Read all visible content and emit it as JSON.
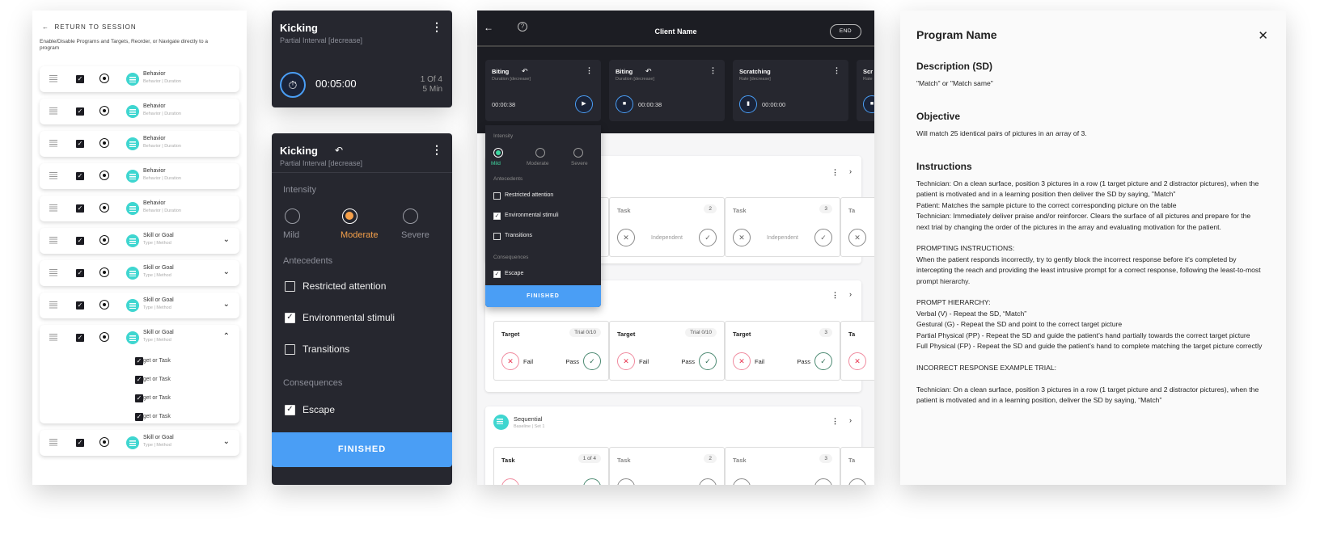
{
  "nav_panel": {
    "return_label": "RETURN TO SESSION",
    "description": "Enable/Disable Programs and Targets, Reorder, or Navigate directly to a program",
    "rows": [
      {
        "title": "Behavior",
        "subtitle": "Behavior | Duration",
        "chevron": ""
      },
      {
        "title": "Behavior",
        "subtitle": "Behavior | Duration",
        "chevron": ""
      },
      {
        "title": "Behavior",
        "subtitle": "Behavior | Duration",
        "chevron": ""
      },
      {
        "title": "Behavior",
        "subtitle": "Behavior | Duration",
        "chevron": ""
      },
      {
        "title": "Behavior",
        "subtitle": "Behavior | Duration",
        "chevron": ""
      },
      {
        "title": "Skill or Goal",
        "subtitle": "Type | Method",
        "chevron": "⌄"
      },
      {
        "title": "Skill or Goal",
        "subtitle": "Type | Method",
        "chevron": "⌄"
      },
      {
        "title": "Skill or Goal",
        "subtitle": "Type | Method",
        "chevron": "⌄"
      },
      {
        "title": "Skill or Goal",
        "subtitle": "Type | Method",
        "chevron": "⌃",
        "targets": [
          "Target or Task",
          "Target or Task",
          "Target or Task",
          "Target or Task"
        ]
      },
      {
        "title": "Skill or Goal",
        "subtitle": "Type | Method",
        "chevron": "⌄"
      }
    ]
  },
  "timer_card": {
    "title": "Kicking",
    "subtitle": "Partial Interval [decrease]",
    "time": "00:05:00",
    "count": "1 Of 4",
    "interval": "5 Min"
  },
  "abc_card": {
    "title": "Kicking",
    "subtitle": "Partial Interval [decrease]",
    "intensity_label": "Intensity",
    "intensity_options": [
      "Mild",
      "Moderate",
      "Severe"
    ],
    "intensity_selected": "Moderate",
    "accent": "#f5a04a",
    "antecedents_label": "Antecedents",
    "antecedents": [
      {
        "label": "Restricted attention",
        "checked": false
      },
      {
        "label": "Environmental stimuli",
        "checked": true
      },
      {
        "label": "Transitions",
        "checked": false
      }
    ],
    "consequences_label": "Consequences",
    "consequences": [
      {
        "label": "Escape",
        "checked": true
      }
    ],
    "finished": "FINISHED"
  },
  "session": {
    "title": "Client Name",
    "end": "END",
    "behaviors": [
      {
        "title": "Biting",
        "subtitle": "Duration [decrease]",
        "time": "00:00:38"
      },
      {
        "title": "Biting",
        "subtitle": "Duration [decrease]",
        "time": "00:00:38"
      },
      {
        "title": "Scratching",
        "subtitle": "Rate [decrease]",
        "time": "00:00:00"
      },
      {
        "title": "Scr",
        "subtitle": "Rate"
      }
    ],
    "popover": {
      "intensity_label": "Intensity",
      "options": [
        "Mild",
        "Moderate",
        "Severe"
      ],
      "selected": "Mild",
      "accent": "#3fd6a0",
      "antecedents_label": "Antecedents",
      "antecedents": [
        {
          "label": "Restricted attention",
          "checked": false
        },
        {
          "label": "Environmental stimuli",
          "checked": true
        },
        {
          "label": "Transitions",
          "checked": false
        }
      ],
      "consequences_label": "Consequences",
      "consequences": [
        {
          "label": "Escape",
          "checked": true
        }
      ],
      "finished": "FINISHED"
    },
    "section1": {
      "cards": [
        {
          "name": "Task",
          "badge": "2",
          "mid": "Independent"
        },
        {
          "name": "Task",
          "badge": "3",
          "mid": "Independent"
        },
        {
          "name": "Ta"
        }
      ]
    },
    "section2": {
      "cards": [
        {
          "name": "Target",
          "badge": "Trial 0/10",
          "fail": "Fail",
          "pass": "Pass"
        },
        {
          "name": "Target",
          "badge": "Trial 0/10",
          "fail": "Fail",
          "pass": "Pass"
        },
        {
          "name": "Target",
          "badge": "3",
          "fail": "Fail",
          "pass": "Pass"
        },
        {
          "name": "Ta"
        }
      ]
    },
    "section3": {
      "title": "Sequential",
      "subtitle": "Baseline | Set 1",
      "cards": [
        {
          "name": "Task",
          "badge": "1 of 4"
        },
        {
          "name": "Task",
          "badge": "2"
        },
        {
          "name": "Task",
          "badge": "3"
        },
        {
          "name": "Ta"
        }
      ]
    }
  },
  "program": {
    "title": "Program Name",
    "description_heading": "Description (SD)",
    "description": "\"Match\" or \"Match same\"",
    "objective_heading": "Objective",
    "objective": "Will match 25 identical pairs of pictures in an array of 3.",
    "instructions_heading": "Instructions",
    "instructions": "Technician: On a clean surface, position 3 pictures in a row (1 target picture and 2 distractor pictures), when the patient is motivated and in a learning position then deliver the SD by saying, \"Match\"\nPatient: Matches the sample picture to the correct corresponding picture on the table\nTechnician: Immediately deliver praise and/or reinforcer. Clears the surface of all pictures and prepare for the next trial by changing the order of the pictures in the array and evaluating motivation for the patient.\n\nPROMPTING INSTRUCTIONS:\nWhen the patient responds incorrectly, try to gently block the incorrect response before it's completed by intercepting the reach and providing the least intrusive prompt for a correct response, following the least-to-most prompt hierarchy.\n\nPROMPT HIERARCHY:\nVerbal (V) - Repeat the SD, “Match”\nGestural (G) - Repeat the SD and point to the correct target picture\nPartial Physical (PP) - Repeat the SD and guide the patient’s hand partially towards the correct target picture\nFull Physical (FP) - Repeat the SD and guide the patient’s hand to complete matching the target picture correctly\n\nINCORRECT RESPONSE EXAMPLE TRIAL:\n\nTechnician: On a clean surface, position 3 pictures in a row (1 target picture and 2 distractor pictures), when the patient is motivated and in a learning position, deliver the SD by saying, “Match”"
  }
}
